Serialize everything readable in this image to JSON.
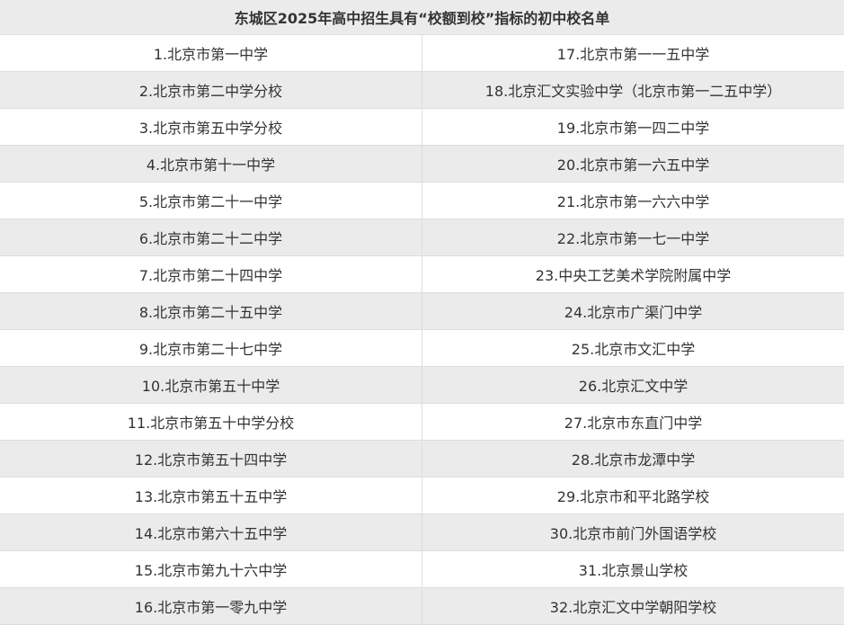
{
  "title": "东城区2025年高中招生具有“校额到校”指标的初中校名单",
  "rows": [
    [
      "1.北京市第一中学",
      "17.北京市第一一五中学"
    ],
    [
      "2.北京市第二中学分校",
      "18.北京汇文实验中学（北京市第一二五中学）"
    ],
    [
      "3.北京市第五中学分校",
      "19.北京市第一四二中学"
    ],
    [
      "4.北京市第十一中学",
      "20.北京市第一六五中学"
    ],
    [
      "5.北京市第二十一中学",
      "21.北京市第一六六中学"
    ],
    [
      "6.北京市第二十二中学",
      "22.北京市第一七一中学"
    ],
    [
      "7.北京市第二十四中学",
      "23.中央工艺美术学院附属中学"
    ],
    [
      "8.北京市第二十五中学",
      "24.北京市广渠门中学"
    ],
    [
      "9.北京市第二十七中学",
      "25.北京市文汇中学"
    ],
    [
      "10.北京市第五十中学",
      "26.北京汇文中学"
    ],
    [
      "11.北京市第五十中学分校",
      "27.北京市东直门中学"
    ],
    [
      "12.北京市第五十四中学",
      "28.北京市龙潭中学"
    ],
    [
      "13.北京市第五十五中学",
      "29.北京市和平北路学校"
    ],
    [
      "14.北京市第六十五中学",
      "30.北京市前门外国语学校"
    ],
    [
      "15.北京市第九十六中学",
      "31.北京景山学校"
    ],
    [
      "16.北京市第一零九中学",
      "32.北京汇文中学朝阳学校"
    ]
  ]
}
